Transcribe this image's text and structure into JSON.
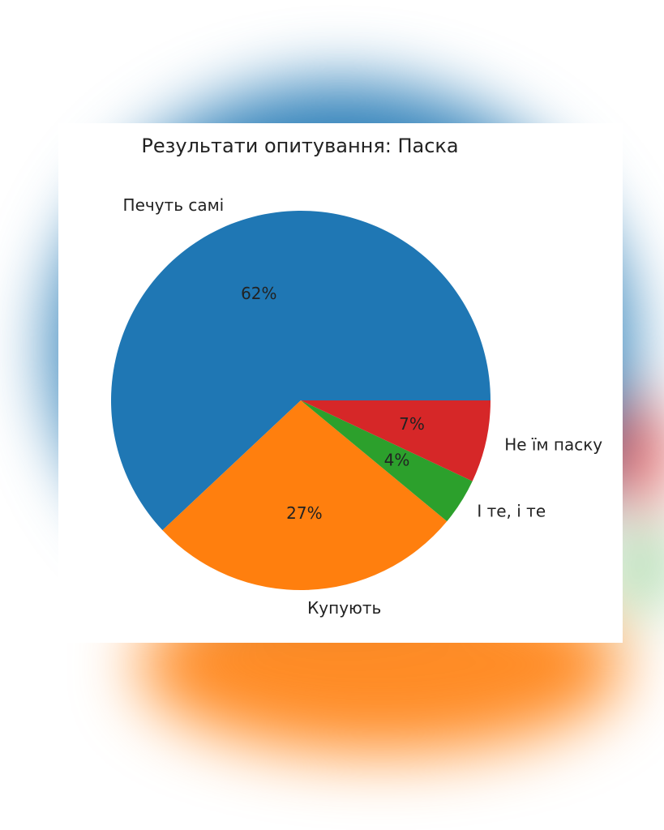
{
  "chart_data": {
    "type": "pie",
    "title": "Результати опитування: Паска",
    "categories": [
      "Печуть самі",
      "Купують",
      "І те, і те",
      "Не їм паску"
    ],
    "values": [
      62,
      27,
      4,
      7
    ],
    "value_labels": [
      "62%",
      "27%",
      "4%",
      "7%"
    ],
    "colors": [
      "#1f77b4",
      "#ff7f0e",
      "#2ca02c",
      "#d62728"
    ]
  }
}
